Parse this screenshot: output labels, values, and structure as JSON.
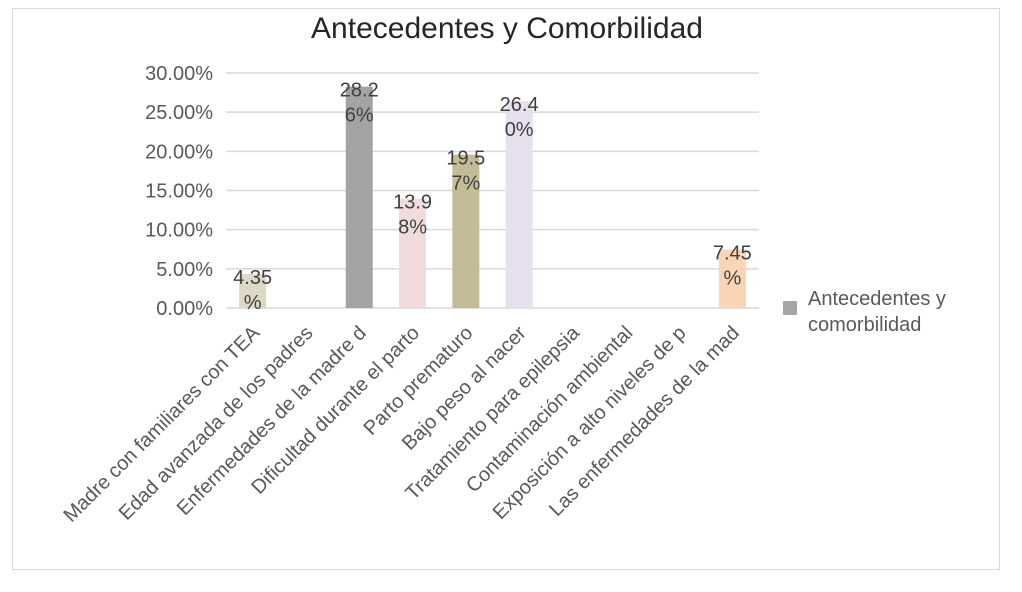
{
  "chart_data": {
    "type": "bar",
    "title": "Antecedentes y Comorbilidad",
    "xlabel": "",
    "ylabel": "",
    "ylim": [
      0,
      0.3
    ],
    "y_ticks": [
      "0.00%",
      "5.00%",
      "10.00%",
      "15.00%",
      "20.00%",
      "25.00%",
      "30.00%"
    ],
    "grid": true,
    "legend_position": "right",
    "categories": [
      "Madre con familiares con TEA",
      "Edad avanzada de los padres",
      "Enfermedades de la madre d",
      "Dificultad durante el parto",
      "Parto prematuro",
      "Bajo peso al nacer",
      "Tratamiento para epilepsia",
      "Contaminación ambiental",
      "Exposición a alto niveles de p",
      "Las enfermedades de la mad"
    ],
    "series": [
      {
        "name": "Antecedentes y comorbilidad",
        "values": [
          0.0435,
          0,
          0.2826,
          0.1398,
          0.1957,
          0.264,
          0,
          0,
          0,
          0.0745
        ],
        "data_labels": [
          [
            "4.35",
            "%"
          ],
          null,
          [
            "28.2",
            "6%"
          ],
          [
            "13.9",
            "8%"
          ],
          [
            "19.5",
            "7%"
          ],
          [
            "26.4",
            "0%"
          ],
          null,
          null,
          null,
          [
            "7.45",
            "%"
          ]
        ],
        "colors": [
          "#ddd8c8",
          "#ffffff",
          "#a3a3a3",
          "#f0dcdc",
          "#c3bd97",
          "#e6e0ee",
          "#ffffff",
          "#ffffff",
          "#ffffff",
          "#f9d5b6"
        ]
      }
    ],
    "legend": {
      "lines": [
        "Antecedentes y",
        "comorbilidad"
      ],
      "swatch_color": "#a6a6a6"
    }
  }
}
